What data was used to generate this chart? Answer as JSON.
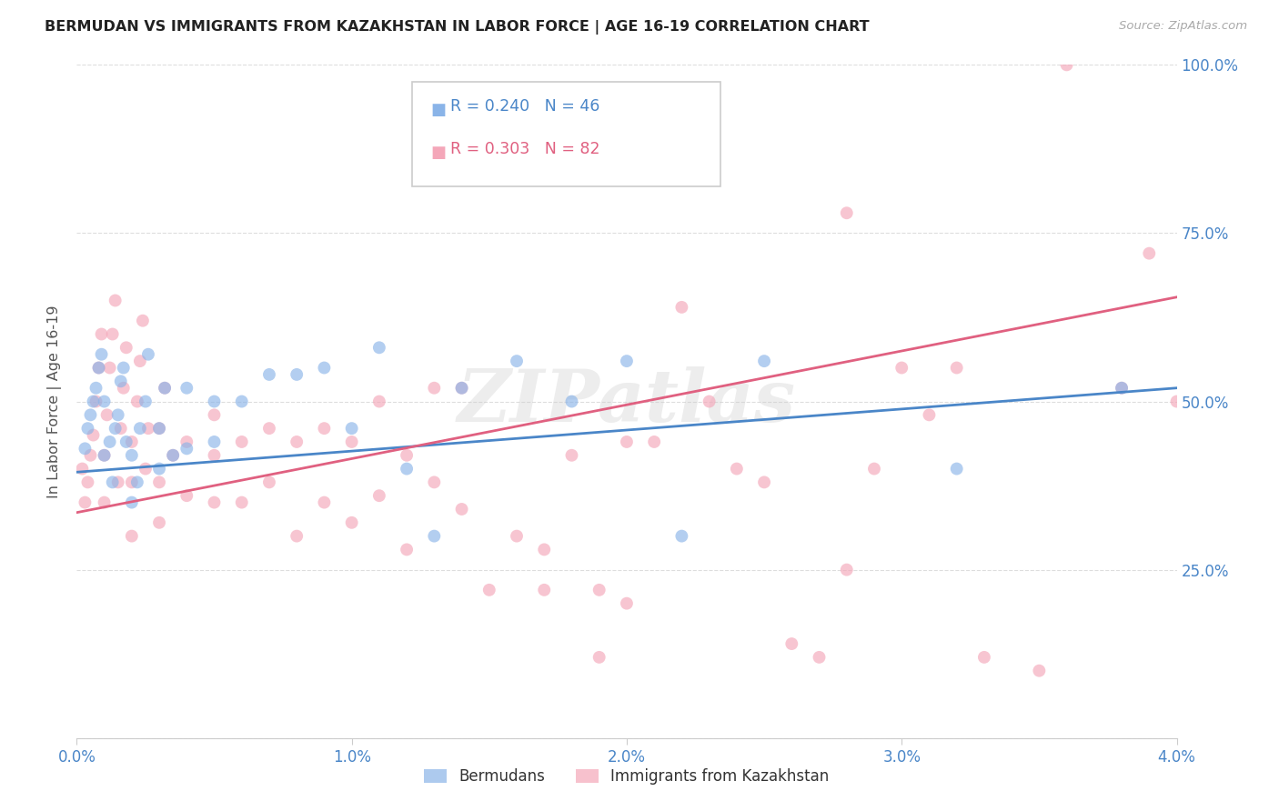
{
  "title": "BERMUDAN VS IMMIGRANTS FROM KAZAKHSTAN IN LABOR FORCE | AGE 16-19 CORRELATION CHART",
  "source": "Source: ZipAtlas.com",
  "ylabel": "In Labor Force | Age 16-19",
  "xmin": 0.0,
  "xmax": 0.04,
  "ymin": 0.0,
  "ymax": 1.0,
  "yticks": [
    0.0,
    0.25,
    0.5,
    0.75,
    1.0
  ],
  "ytick_labels": [
    "",
    "25.0%",
    "50.0%",
    "75.0%",
    "100.0%"
  ],
  "xticks": [
    0.0,
    0.01,
    0.02,
    0.03,
    0.04
  ],
  "xtick_labels": [
    "0.0%",
    "1.0%",
    "2.0%",
    "3.0%",
    "4.0%"
  ],
  "blue_color": "#8ab4e8",
  "pink_color": "#f4a7b9",
  "blue_line_color": "#4a86c8",
  "pink_line_color": "#e06080",
  "blue_r": 0.24,
  "blue_n": 46,
  "pink_r": 0.303,
  "pink_n": 82,
  "legend_label_blue": "Bermudans",
  "legend_label_pink": "Immigrants from Kazakhstan",
  "watermark": "ZIPatlas",
  "blue_scatter_x": [
    0.0003,
    0.0004,
    0.0005,
    0.0006,
    0.0007,
    0.0008,
    0.0009,
    0.001,
    0.001,
    0.0012,
    0.0013,
    0.0014,
    0.0015,
    0.0016,
    0.0017,
    0.0018,
    0.002,
    0.002,
    0.0022,
    0.0023,
    0.0025,
    0.0026,
    0.003,
    0.003,
    0.0032,
    0.0035,
    0.004,
    0.004,
    0.005,
    0.005,
    0.006,
    0.007,
    0.008,
    0.009,
    0.01,
    0.011,
    0.012,
    0.013,
    0.014,
    0.016,
    0.018,
    0.02,
    0.022,
    0.025,
    0.032,
    0.038
  ],
  "blue_scatter_y": [
    0.43,
    0.46,
    0.48,
    0.5,
    0.52,
    0.55,
    0.57,
    0.42,
    0.5,
    0.44,
    0.38,
    0.46,
    0.48,
    0.53,
    0.55,
    0.44,
    0.35,
    0.42,
    0.38,
    0.46,
    0.5,
    0.57,
    0.4,
    0.46,
    0.52,
    0.42,
    0.43,
    0.52,
    0.44,
    0.5,
    0.5,
    0.54,
    0.54,
    0.55,
    0.46,
    0.58,
    0.4,
    0.3,
    0.52,
    0.56,
    0.5,
    0.56,
    0.3,
    0.56,
    0.4,
    0.52
  ],
  "pink_scatter_x": [
    0.0002,
    0.0003,
    0.0004,
    0.0005,
    0.0006,
    0.0007,
    0.0008,
    0.0009,
    0.001,
    0.001,
    0.0011,
    0.0012,
    0.0013,
    0.0014,
    0.0015,
    0.0016,
    0.0017,
    0.0018,
    0.002,
    0.002,
    0.002,
    0.0022,
    0.0023,
    0.0024,
    0.0025,
    0.0026,
    0.003,
    0.003,
    0.003,
    0.0032,
    0.0035,
    0.004,
    0.004,
    0.005,
    0.005,
    0.005,
    0.006,
    0.006,
    0.007,
    0.007,
    0.008,
    0.008,
    0.009,
    0.009,
    0.01,
    0.01,
    0.011,
    0.011,
    0.012,
    0.012,
    0.013,
    0.013,
    0.014,
    0.014,
    0.015,
    0.016,
    0.017,
    0.018,
    0.019,
    0.02,
    0.021,
    0.022,
    0.023,
    0.024,
    0.025,
    0.026,
    0.027,
    0.028,
    0.03,
    0.032,
    0.033,
    0.035,
    0.036,
    0.038,
    0.039,
    0.04,
    0.031,
    0.029,
    0.028,
    0.02,
    0.019,
    0.017
  ],
  "pink_scatter_y": [
    0.4,
    0.35,
    0.38,
    0.42,
    0.45,
    0.5,
    0.55,
    0.6,
    0.35,
    0.42,
    0.48,
    0.55,
    0.6,
    0.65,
    0.38,
    0.46,
    0.52,
    0.58,
    0.3,
    0.38,
    0.44,
    0.5,
    0.56,
    0.62,
    0.4,
    0.46,
    0.32,
    0.38,
    0.46,
    0.52,
    0.42,
    0.36,
    0.44,
    0.35,
    0.42,
    0.48,
    0.35,
    0.44,
    0.38,
    0.46,
    0.3,
    0.44,
    0.35,
    0.46,
    0.32,
    0.44,
    0.36,
    0.5,
    0.28,
    0.42,
    0.38,
    0.52,
    0.34,
    0.52,
    0.22,
    0.3,
    0.28,
    0.42,
    0.22,
    0.44,
    0.44,
    0.64,
    0.5,
    0.4,
    0.38,
    0.14,
    0.12,
    0.25,
    0.55,
    0.55,
    0.12,
    0.1,
    1.0,
    0.52,
    0.72,
    0.5,
    0.48,
    0.4,
    0.78,
    0.2,
    0.12,
    0.22
  ],
  "background_color": "#ffffff",
  "grid_color": "#dddddd",
  "title_color": "#222222",
  "tick_label_color": "#4a86c8",
  "marker_size": 100,
  "blue_trend_x": [
    0.0,
    0.04
  ],
  "blue_trend_y": [
    0.395,
    0.52
  ],
  "pink_trend_x": [
    0.0,
    0.04
  ],
  "pink_trend_y": [
    0.335,
    0.655
  ]
}
